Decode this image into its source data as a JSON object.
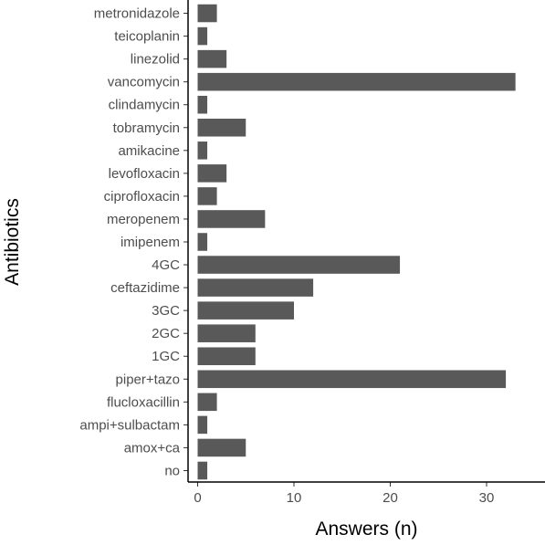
{
  "chart_data": {
    "type": "bar",
    "orientation": "horizontal",
    "title": "",
    "xlabel": "Answers (n)",
    "ylabel": "Antibiotics",
    "categories": [
      "metronidazole",
      "teicoplanin",
      "linezolid",
      "vancomycin",
      "clindamycin",
      "tobramycin",
      "amikacine",
      "levofloxacin",
      "ciprofloxacin",
      "meropenem",
      "imipenem",
      "4GC",
      "ceftazidime",
      "3GC",
      "2GC",
      "1GC",
      "piper+tazo",
      "flucloxacillin",
      "ampi+sulbactam",
      "amox+ca",
      "no"
    ],
    "values": [
      2,
      1,
      3,
      33,
      1,
      5,
      1,
      3,
      2,
      7,
      1,
      21,
      12,
      10,
      6,
      6,
      32,
      2,
      1,
      5,
      1
    ],
    "xlim": [
      0,
      34
    ],
    "xticks": [
      0,
      10,
      20,
      30
    ],
    "grid": false,
    "bar_color": "#595959",
    "axis_color": "#000000",
    "tick_label_color": "#4d4d4d"
  }
}
